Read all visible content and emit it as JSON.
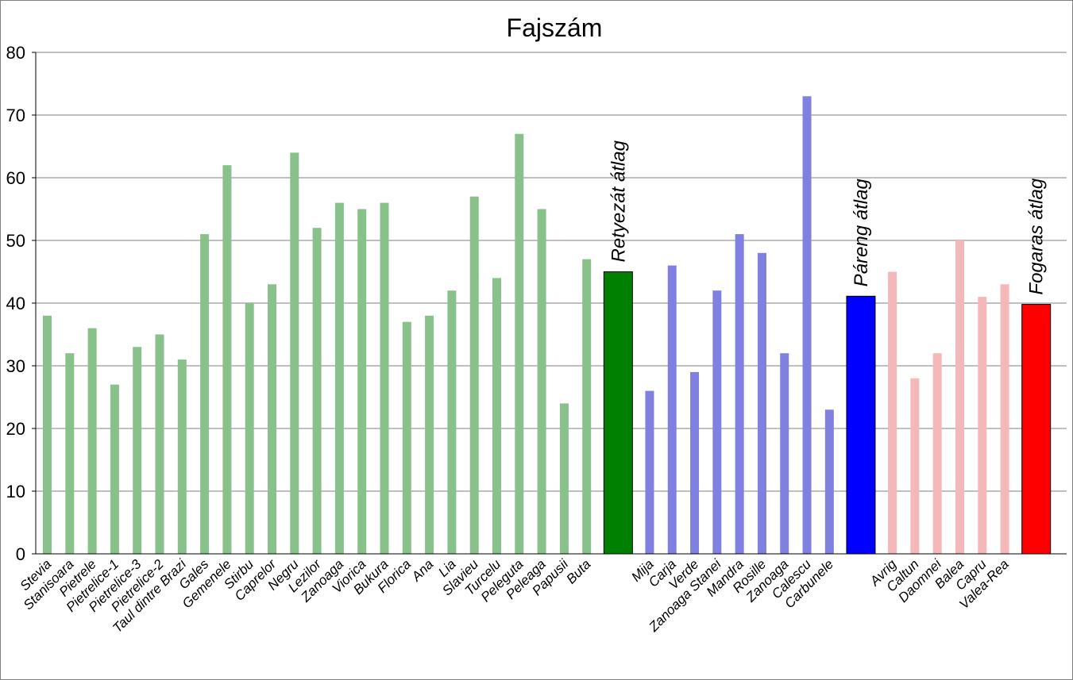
{
  "chart_data": {
    "type": "bar",
    "title": "Fajszám",
    "xlabel": "",
    "ylabel": "",
    "ylim": [
      0,
      80
    ],
    "yticks": [
      0,
      10,
      20,
      30,
      40,
      50,
      60,
      70,
      80
    ],
    "grid": true,
    "legend": "none",
    "colors": {
      "retyezat": "#88c28a",
      "retyezat_avg": "#008000",
      "pareng": "#8080e0",
      "pareng_avg": "#0000ff",
      "fogaras": "#f5b8b8",
      "fogaras_avg": "#ff0000",
      "grid": "#808080"
    },
    "groups": [
      {
        "id": "retyezat",
        "categories": [
          "Stevia",
          "Stanisoara",
          "Pietrele",
          "Pietrelice-1",
          "Pietrelice-3",
          "Pietrelice-2",
          "Taul dintre Brazi",
          "Gales",
          "Gemenele",
          "Stirbu",
          "Caprelor",
          "Negru",
          "Lezilor",
          "Zanoaga",
          "Viorica",
          "Bukura",
          "Florica",
          "Ana",
          "Lia",
          "Slavieu",
          "Turcelu",
          "Peleguta",
          "Peleaga",
          "Papusii",
          "Buta"
        ],
        "values": [
          38,
          32,
          36,
          27,
          33,
          35,
          31,
          51,
          62,
          40,
          43,
          64,
          52,
          56,
          55,
          56,
          37,
          38,
          42,
          57,
          44,
          67,
          55,
          24,
          47
        ],
        "average": {
          "label": "Retyezát átlag",
          "value": 45
        }
      },
      {
        "id": "pareng",
        "categories": [
          "Mija",
          "Carja",
          "Verde",
          "Zanoaga Stanei",
          "Mandra",
          "Rosille",
          "Zanoaga",
          "Calescu",
          "Carbunele"
        ],
        "values": [
          26,
          46,
          29,
          42,
          51,
          48,
          32,
          73,
          23
        ],
        "average": {
          "label": "Páreng átlag",
          "value": 41.1
        }
      },
      {
        "id": "fogaras",
        "categories": [
          "Avrig",
          "Caltun",
          "Daomnei",
          "Balea",
          "Capru",
          "Valea-Rea"
        ],
        "values": [
          45,
          28,
          32,
          50,
          41,
          43
        ],
        "average": {
          "label": "Fogaras átlag",
          "value": 39.8
        }
      }
    ]
  }
}
